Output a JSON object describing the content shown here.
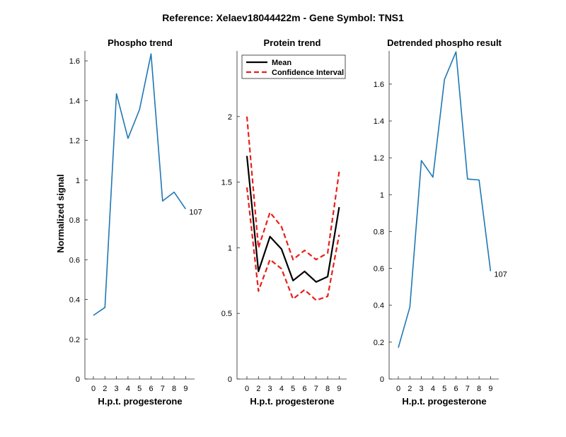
{
  "figure": {
    "suptitle": "Reference:  Xelaev18044422m - Gene Symbol:  TNS1"
  },
  "colors": {
    "phospho": "#1f77b4",
    "mean": "#000000",
    "ci": "#e8201a"
  },
  "chart_data": [
    {
      "type": "line",
      "title": "Phospho trend",
      "xlabel": "H.p.t. progesterone",
      "ylabel": "Normalized signal",
      "categories": [
        "0",
        "2",
        "3",
        "4",
        "5",
        "6",
        "7",
        "8",
        "9"
      ],
      "ylim": [
        0,
        1.65
      ],
      "yticks": [
        0,
        0.2,
        0.4,
        0.6,
        0.8,
        1,
        1.2,
        1.4,
        1.6
      ],
      "ytick_labels": [
        "0",
        "0.2",
        "0.4",
        "0.6",
        "0.8",
        "1",
        "1.2",
        "1.4",
        "1.6"
      ],
      "series": [
        {
          "name": "Phospho",
          "values": [
            0.32,
            0.36,
            1.435,
            1.21,
            1.355,
            1.635,
            0.895,
            0.94,
            0.855
          ]
        }
      ],
      "end_label": "107"
    },
    {
      "type": "line",
      "title": "Protein trend",
      "xlabel": "H.p.t. progesterone",
      "ylabel": "",
      "categories": [
        "0",
        "2",
        "3",
        "4",
        "5",
        "6",
        "7",
        "8",
        "9"
      ],
      "ylim": [
        0,
        2.5
      ],
      "yticks": [
        0,
        0.5,
        1,
        1.5,
        2
      ],
      "ytick_labels": [
        "0",
        "0.5",
        "1",
        "1.5",
        "2"
      ],
      "legend": {
        "position": "top-left",
        "entries": [
          "Mean",
          "Confidence Interval"
        ]
      },
      "series": [
        {
          "name": "Mean",
          "values": [
            1.7,
            0.82,
            1.085,
            0.99,
            0.75,
            0.82,
            0.74,
            0.78,
            1.31
          ]
        },
        {
          "name": "Confidence Interval",
          "bound": "upper",
          "values": [
            2.0,
            1.0,
            1.27,
            1.16,
            0.91,
            0.98,
            0.91,
            0.96,
            1.58
          ]
        },
        {
          "name": "Confidence Interval",
          "bound": "lower",
          "values": [
            1.46,
            0.67,
            0.91,
            0.84,
            0.61,
            0.68,
            0.6,
            0.63,
            1.1
          ]
        }
      ]
    },
    {
      "type": "line",
      "title": "Detrended phospho result",
      "xlabel": "H.p.t. progesterone",
      "ylabel": "",
      "categories": [
        "0",
        "2",
        "3",
        "4",
        "5",
        "6",
        "7",
        "8",
        "9"
      ],
      "ylim": [
        0,
        1.78
      ],
      "yticks": [
        0,
        0.2,
        0.4,
        0.6,
        0.8,
        1,
        1.2,
        1.4,
        1.6
      ],
      "ytick_labels": [
        "0",
        "0.2",
        "0.4",
        "0.6",
        "0.8",
        "1",
        "1.2",
        "1.4",
        "1.6"
      ],
      "series": [
        {
          "name": "Detrended",
          "values": [
            0.17,
            0.39,
            1.185,
            1.095,
            1.625,
            1.775,
            1.085,
            1.08,
            0.585
          ]
        }
      ],
      "end_label": "107"
    }
  ]
}
